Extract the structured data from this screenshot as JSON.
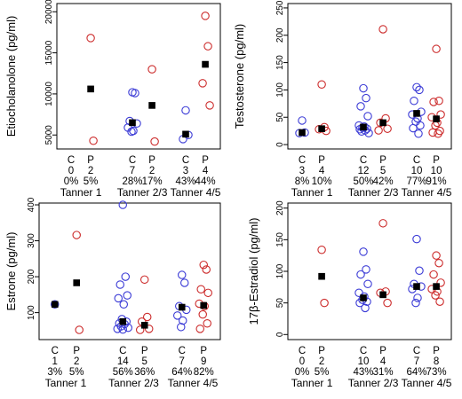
{
  "colors": {
    "C": "#3b3bd6",
    "P": "#cc2b2b",
    "mean": "#000000",
    "frame": "#000000"
  },
  "chart_data": [
    {
      "type": "scatter",
      "ylabel": "Etiocholanolone (pg/ml)",
      "yticks": [
        5000,
        10000,
        15000,
        20000
      ],
      "ylim": [
        3300,
        21000
      ],
      "groups": [
        {
          "code": "C",
          "n": "0",
          "pct": "0%",
          "stage": "Tanner 1",
          "points": [],
          "mean": null
        },
        {
          "code": "P",
          "n": "2",
          "pct": "5%",
          "stage": "Tanner 1",
          "points": [
            16800,
            4300
          ],
          "mean": 10600
        },
        {
          "code": "C",
          "n": "7",
          "pct": "28%",
          "stage": "Tanner 2/3",
          "points": [
            10200,
            10100,
            6700,
            6400,
            5900,
            5500,
            5400
          ],
          "mean": 6500
        },
        {
          "code": "P",
          "n": "2",
          "pct": "17%",
          "stage": "Tanner 2/3",
          "points": [
            13000,
            4200
          ],
          "mean": 8600
        },
        {
          "code": "C",
          "n": "3",
          "pct": "43%",
          "stage": "Tanner 4/5",
          "points": [
            8000,
            5000,
            4500
          ],
          "mean": 5100
        },
        {
          "code": "P",
          "n": "4",
          "pct": "44%",
          "stage": "Tanner 4/5",
          "points": [
            19500,
            15800,
            11300,
            8600
          ],
          "mean": 13600
        }
      ]
    },
    {
      "type": "scatter",
      "ylabel": "Testosterone (pg/ml)",
      "yticks": [
        0,
        50,
        100,
        150,
        200,
        250
      ],
      "ylim": [
        -8,
        258
      ],
      "groups": [
        {
          "code": "C",
          "n": "3",
          "pct": "8%",
          "stage": "Tanner 1",
          "points": [
            44,
            22,
            21
          ],
          "mean": 22
        },
        {
          "code": "P",
          "n": "4",
          "pct": "10%",
          "stage": "Tanner 1",
          "points": [
            110,
            32,
            28,
            25
          ],
          "mean": 29
        },
        {
          "code": "C",
          "n": "12",
          "pct": "50%",
          "stage": "Tanner 2/3",
          "points": [
            103,
            85,
            70,
            52,
            35,
            33,
            31,
            29,
            28,
            26,
            24,
            21
          ],
          "mean": 32
        },
        {
          "code": "P",
          "n": "5",
          "pct": "42%",
          "stage": "Tanner 2/3",
          "points": [
            211,
            48,
            40,
            29,
            26
          ],
          "mean": 40
        },
        {
          "code": "C",
          "n": "10",
          "pct": "77%",
          "stage": "Tanner 4/5",
          "points": [
            105,
            100,
            80,
            60,
            55,
            48,
            42,
            35,
            30,
            20
          ],
          "mean": 57
        },
        {
          "code": "P",
          "n": "10",
          "pct": "91%",
          "stage": "Tanner 4/5",
          "points": [
            175,
            80,
            78,
            55,
            50,
            40,
            35,
            25,
            22,
            20
          ],
          "mean": 47
        }
      ]
    },
    {
      "type": "scatter",
      "ylabel": "Estrone (pg/ml)",
      "yticks": [
        100,
        200,
        300,
        400
      ],
      "ylim": [
        25,
        405
      ],
      "groups": [
        {
          "code": "C",
          "n": "1",
          "pct": "3%",
          "stage": "Tanner 1",
          "points": [
            123
          ],
          "mean": 123
        },
        {
          "code": "P",
          "n": "2",
          "pct": "5%",
          "stage": "Tanner 1",
          "points": [
            316,
            52
          ],
          "mean": 183
        },
        {
          "code": "C",
          "n": "14",
          "pct": "56%",
          "stage": "Tanner 2/3",
          "points": [
            400,
            200,
            178,
            148,
            140,
            123,
            82,
            75,
            70,
            68,
            62,
            58,
            55,
            53
          ],
          "mean": 75
        },
        {
          "code": "P",
          "n": "5",
          "pct": "36%",
          "stage": "Tanner 2/3",
          "points": [
            192,
            88,
            75,
            55,
            52
          ],
          "mean": 65
        },
        {
          "code": "C",
          "n": "7",
          "pct": "64%",
          "stage": "Tanner 4/5",
          "points": [
            205,
            183,
            118,
            108,
            92,
            78,
            60
          ],
          "mean": 115
        },
        {
          "code": "P",
          "n": "9",
          "pct": "82%",
          "stage": "Tanner 4/5",
          "points": [
            233,
            220,
            165,
            155,
            125,
            118,
            95,
            70,
            55
          ],
          "mean": 120
        }
      ]
    },
    {
      "type": "scatter",
      "ylabel": "17β-Estradiol (pg/ml)",
      "yticks": [
        0,
        50,
        100,
        150,
        200
      ],
      "ylim": [
        -8,
        208
      ],
      "groups": [
        {
          "code": "C",
          "n": "0",
          "pct": "0%",
          "stage": "Tanner 1",
          "points": [],
          "mean": null
        },
        {
          "code": "P",
          "n": "2",
          "pct": "5%",
          "stage": "Tanner 1",
          "points": [
            134,
            50
          ],
          "mean": 92
        },
        {
          "code": "C",
          "n": "10",
          "pct": "43%",
          "stage": "Tanner 2/3",
          "points": [
            131,
            103,
            95,
            80,
            66,
            60,
            55,
            52,
            50,
            42
          ],
          "mean": 58
        },
        {
          "code": "P",
          "n": "4",
          "pct": "31%",
          "stage": "Tanner 2/3",
          "points": [
            176,
            68,
            66,
            50
          ],
          "mean": 63
        },
        {
          "code": "C",
          "n": "7",
          "pct": "64%",
          "stage": "Tanner 4/5",
          "points": [
            151,
            101,
            80,
            76,
            72,
            58,
            50
          ],
          "mean": 76
        },
        {
          "code": "P",
          "n": "8",
          "pct": "73%",
          "stage": "Tanner 4/5",
          "points": [
            125,
            113,
            95,
            82,
            72,
            68,
            62,
            52
          ],
          "mean": 76
        }
      ]
    }
  ]
}
